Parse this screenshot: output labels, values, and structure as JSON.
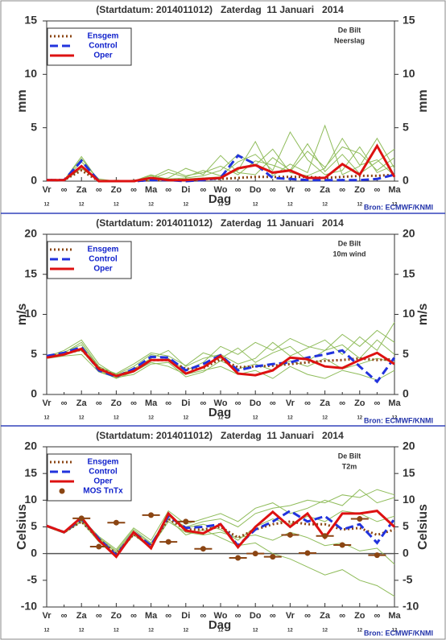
{
  "chart_data": [
    {
      "type": "line",
      "title": "(Startdatum: 2014011012)   Zaterdag  11 Januari   2014",
      "location": "De Bilt",
      "variable": "Neerslag",
      "ylabel": "mm",
      "xlabel": "Dag",
      "source": "Bron: ECMWF/KNMI",
      "x": [
        0,
        12,
        24,
        36,
        48,
        60,
        72,
        84,
        96,
        108,
        120,
        132,
        144,
        156,
        168,
        180,
        192,
        204,
        216,
        228,
        240
      ],
      "xlim": [
        0,
        240
      ],
      "xticks": [
        {
          "value": 0,
          "label": "Vr"
        },
        {
          "value": 24,
          "label": "Za"
        },
        {
          "value": 48,
          "label": "Zo"
        },
        {
          "value": 72,
          "label": "Ma"
        },
        {
          "value": 96,
          "label": "Di"
        },
        {
          "value": 120,
          "label": "Wo"
        },
        {
          "value": 144,
          "label": "Do"
        },
        {
          "value": 168,
          "label": "Vr"
        },
        {
          "value": 192,
          "label": "Za"
        },
        {
          "value": 216,
          "label": "Zo"
        },
        {
          "value": 240,
          "label": "Ma"
        }
      ],
      "minor_xticks": [
        {
          "value": 12,
          "label": "∞"
        },
        {
          "value": 36,
          "label": "∞"
        },
        {
          "value": 60,
          "label": "∞"
        },
        {
          "value": 84,
          "label": "∞"
        },
        {
          "value": 108,
          "label": "∞"
        },
        {
          "value": 132,
          "label": "∞"
        },
        {
          "value": 156,
          "label": "∞"
        },
        {
          "value": 180,
          "label": "∞"
        },
        {
          "value": 204,
          "label": "∞"
        },
        {
          "value": 228,
          "label": "∞"
        }
      ],
      "hour_label": "12",
      "ylim": [
        0,
        15
      ],
      "yticks": [
        0,
        5,
        10,
        15
      ],
      "member_color": "#8fbc5a",
      "members": [
        [
          0.1,
          0,
          1.5,
          0.1,
          0,
          0,
          0.5,
          0.2,
          0.3,
          0.5,
          1.0,
          2.5,
          1.5,
          3.0,
          0.8,
          0.5,
          1.2,
          4.0,
          1.5,
          2.0,
          0.5
        ],
        [
          0.1,
          0.1,
          2.3,
          0,
          0,
          0.1,
          0.2,
          0.8,
          0.4,
          1.0,
          0.5,
          1.8,
          2.5,
          1.0,
          4.6,
          2.0,
          0.6,
          1.0,
          3.2,
          0.8,
          1.5
        ],
        [
          0,
          0.1,
          1.8,
          0.2,
          0,
          0,
          0.1,
          0.3,
          1.2,
          0.6,
          2.4,
          0.8,
          0.6,
          2.2,
          1.0,
          3.5,
          0.9,
          2.5,
          0.7,
          1.8,
          3.0
        ],
        [
          0.1,
          0,
          1.2,
          0,
          0.1,
          0,
          0.6,
          0.1,
          0.2,
          0.3,
          0.4,
          1.0,
          3.7,
          0.5,
          1.6,
          0.8,
          5.2,
          0.6,
          1.4,
          4.0,
          1.2
        ],
        [
          0.1,
          0.1,
          2.1,
          0.1,
          0,
          0,
          0.3,
          1.1,
          0.5,
          0.8,
          1.4,
          0.6,
          1.9,
          1.5,
          0.9,
          2.8,
          1.3,
          3.2,
          2.6,
          1.0,
          2.2
        ]
      ],
      "series": [
        {
          "name": "Ensgem",
          "color": "#8b4513",
          "dash": "dotted",
          "values": [
            0.1,
            0.1,
            1.0,
            0,
            0,
            0,
            0.1,
            0.1,
            0.1,
            0.2,
            0.2,
            0.3,
            0.4,
            0.4,
            0.4,
            0.4,
            0.3,
            0.4,
            0.5,
            0.5,
            0.6
          ]
        },
        {
          "name": "Control",
          "color": "#2233dd",
          "dash": "dashed",
          "values": [
            0.1,
            0.1,
            1.9,
            0,
            0,
            0,
            0.1,
            0.1,
            0,
            0.1,
            0.3,
            2.4,
            1.6,
            0.3,
            0.2,
            0.1,
            0.1,
            0.1,
            0.1,
            0.2,
            0.6
          ]
        },
        {
          "name": "Oper",
          "color": "#dd1111",
          "dash": "solid",
          "values": [
            0.1,
            0.1,
            1.4,
            0,
            0,
            0,
            0.3,
            0.1,
            0.1,
            0.2,
            0.3,
            1.2,
            1.5,
            0.8,
            1.0,
            0.3,
            0.3,
            1.6,
            0.6,
            3.3,
            0.4
          ]
        }
      ]
    },
    {
      "type": "line",
      "title": "(Startdatum: 2014011012)   Zaterdag  11 Januari   2014",
      "location": "De Bilt",
      "variable": "10m wind",
      "ylabel": "m/s",
      "xlabel": "Dag",
      "source": "Bron: ECMWF/KNMI",
      "x": [
        0,
        12,
        24,
        36,
        48,
        60,
        72,
        84,
        96,
        108,
        120,
        132,
        144,
        156,
        168,
        180,
        192,
        204,
        216,
        228,
        240
      ],
      "xlim": [
        0,
        240
      ],
      "xticks": [
        {
          "value": 0,
          "label": "Vr"
        },
        {
          "value": 24,
          "label": "Za"
        },
        {
          "value": 48,
          "label": "Zo"
        },
        {
          "value": 72,
          "label": "Ma"
        },
        {
          "value": 96,
          "label": "Di"
        },
        {
          "value": 120,
          "label": "Wo"
        },
        {
          "value": 144,
          "label": "Do"
        },
        {
          "value": 168,
          "label": "Vr"
        },
        {
          "value": 192,
          "label": "Za"
        },
        {
          "value": 216,
          "label": "Zo"
        },
        {
          "value": 240,
          "label": "Ma"
        }
      ],
      "minor_xticks": [
        {
          "value": 12,
          "label": "∞"
        },
        {
          "value": 36,
          "label": "∞"
        },
        {
          "value": 60,
          "label": "∞"
        },
        {
          "value": 84,
          "label": "∞"
        },
        {
          "value": 108,
          "label": "∞"
        },
        {
          "value": 132,
          "label": "∞"
        },
        {
          "value": 156,
          "label": "∞"
        },
        {
          "value": 180,
          "label": "∞"
        },
        {
          "value": 204,
          "label": "∞"
        },
        {
          "value": 228,
          "label": "∞"
        }
      ],
      "hour_label": "12",
      "ylim": [
        0,
        20
      ],
      "yticks": [
        0,
        5,
        10,
        15,
        20
      ],
      "member_color": "#8fbc5a",
      "members": [
        [
          4.6,
          5.2,
          6.5,
          3.5,
          2.5,
          3.5,
          5.0,
          4.5,
          3.0,
          4.0,
          6.0,
          5.0,
          6.5,
          5.5,
          7.0,
          6.0,
          5.5,
          7.5,
          6.0,
          8.0,
          6.5
        ],
        [
          4.8,
          5.0,
          5.5,
          3.0,
          2.0,
          2.8,
          4.0,
          3.5,
          2.5,
          3.0,
          3.5,
          2.5,
          3.0,
          2.0,
          3.5,
          2.5,
          2.0,
          3.0,
          2.5,
          1.8,
          3.0
        ],
        [
          4.7,
          5.5,
          6.8,
          3.8,
          2.4,
          3.2,
          4.5,
          5.5,
          3.5,
          4.5,
          5.0,
          3.8,
          4.5,
          6.5,
          4.8,
          5.8,
          6.8,
          5.0,
          7.2,
          5.5,
          9.0
        ],
        [
          4.5,
          4.8,
          5.0,
          2.8,
          2.1,
          2.5,
          3.8,
          4.0,
          2.2,
          2.8,
          4.2,
          3.2,
          3.8,
          3.0,
          4.2,
          3.5,
          4.5,
          3.2,
          3.8,
          4.5,
          4.0
        ],
        [
          4.9,
          5.3,
          6.2,
          3.4,
          2.6,
          3.8,
          5.2,
          4.8,
          3.6,
          5.2,
          4.5,
          5.8,
          4.0,
          5.2,
          6.0,
          4.2,
          5.5,
          6.2,
          4.5,
          6.8,
          5.0
        ]
      ],
      "series": [
        {
          "name": "Ensgem",
          "color": "#8b4513",
          "dash": "dotted",
          "values": [
            4.7,
            5.1,
            5.6,
            3.3,
            2.3,
            3.0,
            4.3,
            4.3,
            3.2,
            3.3,
            4.4,
            3.4,
            3.5,
            3.6,
            3.8,
            4.0,
            4.2,
            4.3,
            4.5,
            4.3,
            4.4
          ]
        },
        {
          "name": "Control",
          "color": "#2233dd",
          "dash": "dashed",
          "values": [
            4.8,
            5.2,
            5.9,
            3.0,
            2.2,
            3.2,
            4.7,
            4.6,
            3.0,
            3.8,
            4.9,
            3.0,
            3.5,
            3.8,
            4.0,
            4.6,
            5.0,
            5.5,
            3.5,
            1.6,
            4.6
          ]
        },
        {
          "name": "Oper",
          "color": "#dd1111",
          "dash": "solid",
          "values": [
            4.6,
            5.0,
            5.7,
            3.2,
            2.3,
            2.9,
            4.3,
            4.3,
            2.6,
            3.4,
            4.8,
            2.6,
            2.4,
            3.0,
            4.6,
            4.4,
            3.5,
            3.3,
            4.3,
            5.2,
            3.8
          ]
        }
      ]
    },
    {
      "type": "line",
      "title": "(Startdatum: 2014011012)   Zaterdag  11 Januari   2014",
      "location": "De Bilt",
      "variable": "T2m",
      "ylabel": "Celsius",
      "xlabel": "Dag",
      "source": "Bron: ECMWF/KNMI",
      "x": [
        0,
        12,
        24,
        36,
        48,
        60,
        72,
        84,
        96,
        108,
        120,
        132,
        144,
        156,
        168,
        180,
        192,
        204,
        216,
        228,
        240
      ],
      "xlim": [
        0,
        240
      ],
      "xticks": [
        {
          "value": 0,
          "label": "Vr"
        },
        {
          "value": 24,
          "label": "Za"
        },
        {
          "value": 48,
          "label": "Zo"
        },
        {
          "value": 72,
          "label": "Ma"
        },
        {
          "value": 96,
          "label": "Di"
        },
        {
          "value": 120,
          "label": "Wo"
        },
        {
          "value": 144,
          "label": "Do"
        },
        {
          "value": 168,
          "label": "Vr"
        },
        {
          "value": 192,
          "label": "Za"
        },
        {
          "value": 216,
          "label": "Zo"
        },
        {
          "value": 240,
          "label": "Ma"
        }
      ],
      "minor_xticks": [
        {
          "value": 12,
          "label": "∞"
        },
        {
          "value": 36,
          "label": "∞"
        },
        {
          "value": 60,
          "label": "∞"
        },
        {
          "value": 84,
          "label": "∞"
        },
        {
          "value": 108,
          "label": "∞"
        },
        {
          "value": 132,
          "label": "∞"
        },
        {
          "value": 156,
          "label": "∞"
        },
        {
          "value": 180,
          "label": "∞"
        },
        {
          "value": 204,
          "label": "∞"
        },
        {
          "value": 228,
          "label": "∞"
        }
      ],
      "hour_label": "12",
      "ylim": [
        -10,
        20
      ],
      "yticks": [
        -10,
        -5,
        0,
        5,
        10,
        15,
        20
      ],
      "member_color": "#8fbc5a",
      "members": [
        [
          5.2,
          4.2,
          6.5,
          3.0,
          0.5,
          4.5,
          2.0,
          7.0,
          5.0,
          6.0,
          6.5,
          5.0,
          7.5,
          8.5,
          9.0,
          10.0,
          9.5,
          11.0,
          10.5,
          12.0,
          11.0
        ],
        [
          5.0,
          3.8,
          6.0,
          2.2,
          -0.5,
          3.5,
          1.0,
          6.5,
          3.5,
          4.5,
          3.0,
          1.5,
          2.0,
          0.0,
          -1.0,
          -2.5,
          -4.0,
          -3.0,
          -5.0,
          -6.0,
          -8.0
        ],
        [
          5.3,
          4.1,
          6.8,
          2.8,
          0.2,
          4.2,
          1.8,
          7.2,
          4.8,
          5.5,
          4.5,
          2.5,
          5.0,
          6.5,
          5.5,
          7.0,
          6.0,
          8.0,
          7.5,
          6.0,
          7.0
        ],
        [
          5.1,
          3.9,
          6.2,
          2.5,
          -0.2,
          3.8,
          1.2,
          6.0,
          4.0,
          3.5,
          4.0,
          3.0,
          3.5,
          2.5,
          4.0,
          3.0,
          1.5,
          2.0,
          0.5,
          1.0,
          -2.0
        ],
        [
          5.2,
          4.0,
          6.6,
          3.2,
          0.8,
          4.8,
          2.5,
          8.0,
          5.5,
          6.5,
          7.5,
          6.0,
          8.5,
          9.5,
          7.5,
          8.5,
          10.0,
          9.0,
          12.0,
          9.5,
          10.5
        ]
      ],
      "series": [
        {
          "name": "Ensgem",
          "color": "#8b4513",
          "dash": "dotted",
          "values": [
            5.2,
            4.0,
            6.0,
            2.7,
            0.0,
            3.6,
            1.5,
            6.5,
            4.5,
            4.5,
            5.0,
            3.0,
            4.5,
            5.5,
            6.0,
            5.5,
            5.5,
            4.5,
            4.8,
            3.5,
            4.5
          ]
        },
        {
          "name": "Control",
          "color": "#2233dd",
          "dash": "dashed",
          "values": [
            5.2,
            4.0,
            6.5,
            2.8,
            -0.3,
            4.0,
            1.5,
            7.0,
            4.8,
            5.0,
            5.5,
            1.5,
            4.5,
            6.0,
            8.0,
            6.0,
            7.0,
            4.5,
            5.5,
            2.0,
            6.5
          ]
        },
        {
          "name": "Oper",
          "color": "#dd1111",
          "dash": "solid",
          "values": [
            5.2,
            4.0,
            6.8,
            2.5,
            -0.6,
            4.0,
            1.0,
            7.5,
            4.3,
            3.8,
            5.5,
            1.2,
            5.0,
            7.8,
            5.0,
            7.5,
            3.0,
            7.5,
            7.5,
            8.0,
            5.0
          ]
        }
      ],
      "mos": {
        "name": "MOS TnTx",
        "color": "#8b4513",
        "x": [
          24,
          36,
          48,
          72,
          84,
          96,
          108,
          132,
          144,
          156,
          168,
          180,
          192,
          204,
          216,
          228
        ],
        "values": [
          6.6,
          1.3,
          5.8,
          7.2,
          2.2,
          6.0,
          0.9,
          -0.8,
          0.0,
          -0.6,
          3.5,
          0.1,
          3.3,
          1.6,
          6.5,
          -0.3
        ]
      }
    }
  ]
}
